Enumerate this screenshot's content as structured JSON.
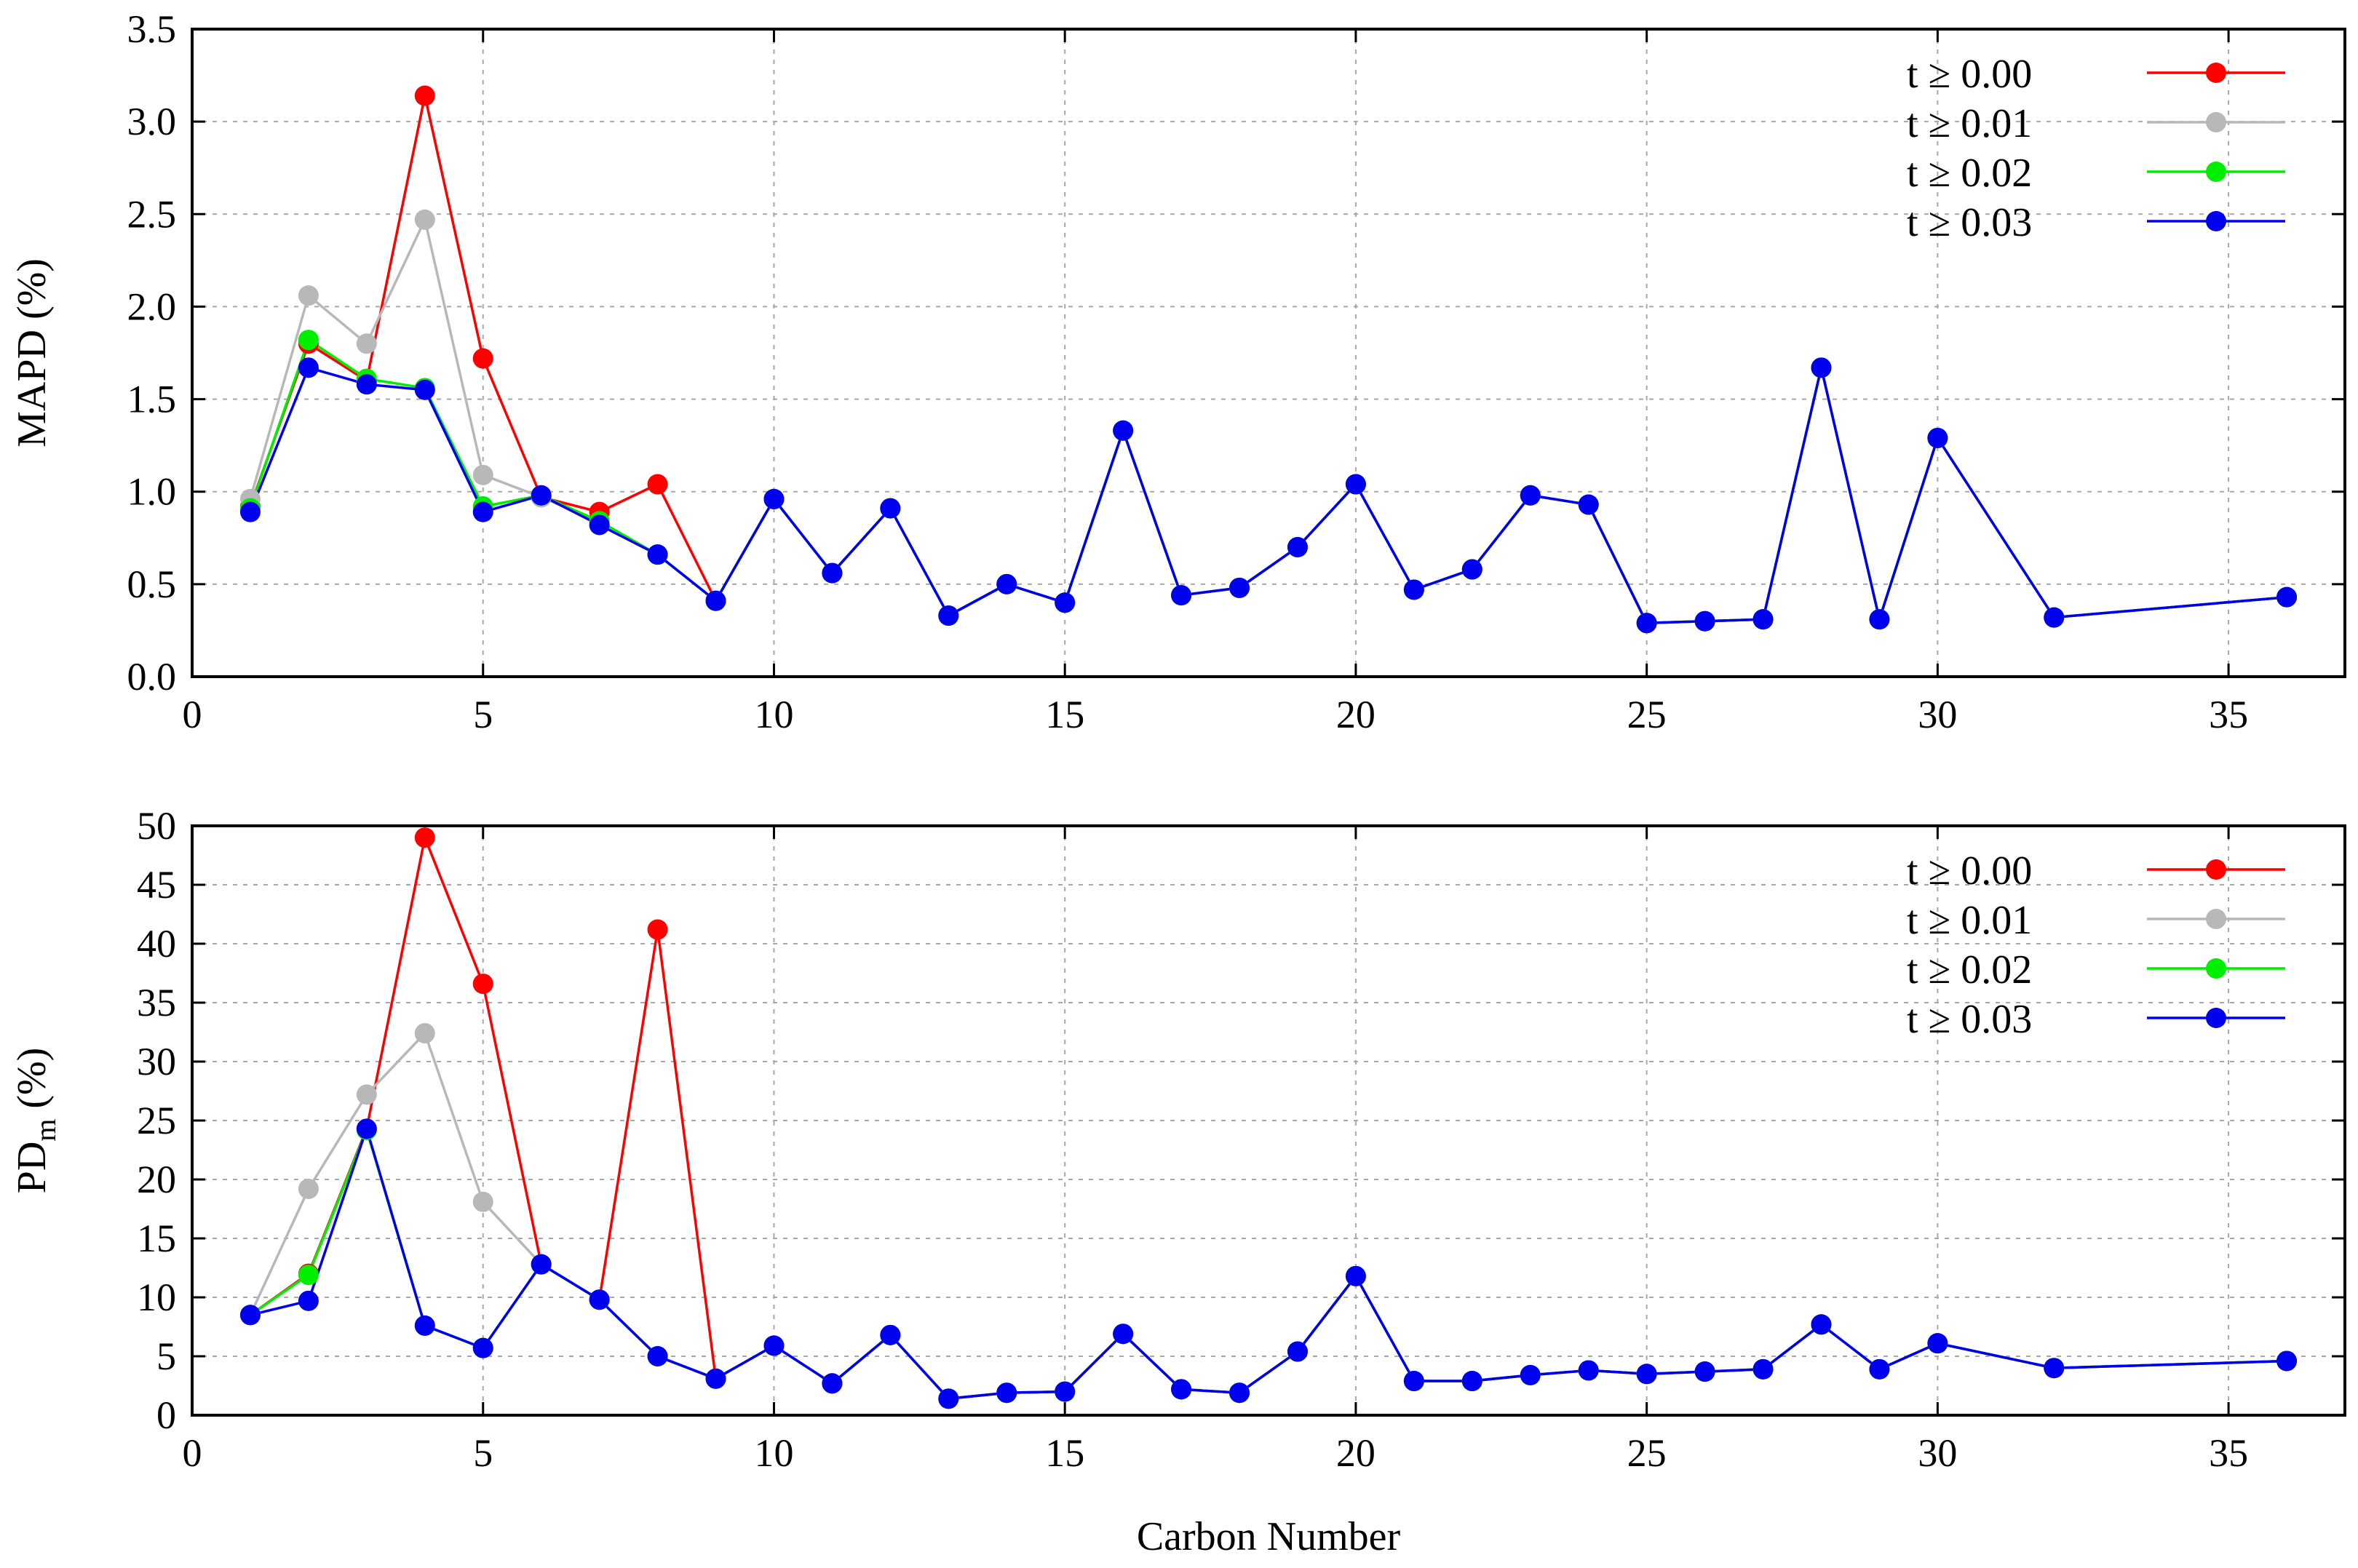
{
  "chart_data": [
    {
      "type": "line",
      "ylabel": "MAPD (%)",
      "xlim": [
        0,
        37
      ],
      "ylim": [
        0,
        3.5
      ],
      "xticks": [
        "0",
        "5",
        "10",
        "15",
        "20",
        "25",
        "30",
        "35"
      ],
      "yticks": [
        "0.0",
        "0.5",
        "1.0",
        "1.5",
        "2.0",
        "2.5",
        "3.0",
        "3.5"
      ],
      "grid": true,
      "legend_position": "top-right",
      "series": [
        {
          "name": "t ≥ 0.00",
          "color": "#ff0000",
          "x": [
            1,
            2,
            3,
            4,
            5,
            6,
            7,
            8,
            9,
            10,
            11,
            12,
            13,
            14,
            15,
            16,
            17,
            18,
            19,
            20,
            21,
            22,
            23,
            24,
            25,
            26,
            27,
            28,
            29,
            30,
            32,
            36
          ],
          "y": [
            0.92,
            1.8,
            1.6,
            3.14,
            1.72,
            0.97,
            0.89,
            1.04,
            0.41,
            0.96,
            0.56,
            0.91,
            0.33,
            0.5,
            0.4,
            1.33,
            0.44,
            0.48,
            0.7,
            1.04,
            0.47,
            0.58,
            0.98,
            0.93,
            0.29,
            0.3,
            0.31,
            1.67,
            0.31,
            1.29,
            0.32,
            0.43
          ]
        },
        {
          "name": "t ≥ 0.01",
          "color": "#b8b8b8",
          "x": [
            1,
            2,
            3,
            4,
            5,
            6,
            7,
            8,
            9,
            10,
            11,
            12,
            13,
            14,
            15,
            16,
            17,
            18,
            19,
            20,
            21,
            22,
            23,
            24,
            25,
            26,
            27,
            28,
            29,
            30,
            32,
            36
          ],
          "y": [
            0.96,
            2.06,
            1.8,
            2.47,
            1.09,
            0.97,
            0.84,
            0.66,
            0.41,
            0.96,
            0.56,
            0.91,
            0.33,
            0.5,
            0.4,
            1.33,
            0.44,
            0.48,
            0.7,
            1.04,
            0.47,
            0.58,
            0.98,
            0.93,
            0.29,
            0.3,
            0.31,
            1.67,
            0.31,
            1.29,
            0.32,
            0.43
          ]
        },
        {
          "name": "t ≥ 0.02",
          "color": "#00ee00",
          "x": [
            1,
            2,
            3,
            4,
            5,
            6,
            7,
            8,
            9,
            10,
            11,
            12,
            13,
            14,
            15,
            16,
            17,
            18,
            19,
            20,
            21,
            22,
            23,
            24,
            25,
            26,
            27,
            28,
            29,
            30,
            32,
            36
          ],
          "y": [
            0.91,
            1.82,
            1.61,
            1.56,
            0.92,
            0.98,
            0.84,
            0.66,
            0.41,
            0.96,
            0.56,
            0.91,
            0.33,
            0.5,
            0.4,
            1.33,
            0.44,
            0.48,
            0.7,
            1.04,
            0.47,
            0.58,
            0.98,
            0.93,
            0.29,
            0.3,
            0.31,
            1.67,
            0.31,
            1.29,
            0.32,
            0.43
          ]
        },
        {
          "name": "t ≥ 0.03",
          "color": "#0000ee",
          "x": [
            1,
            2,
            3,
            4,
            5,
            6,
            7,
            8,
            9,
            10,
            11,
            12,
            13,
            14,
            15,
            16,
            17,
            18,
            19,
            20,
            21,
            22,
            23,
            24,
            25,
            26,
            27,
            28,
            29,
            30,
            32,
            36
          ],
          "y": [
            0.89,
            1.67,
            1.58,
            1.55,
            0.89,
            0.98,
            0.82,
            0.66,
            0.41,
            0.96,
            0.56,
            0.91,
            0.33,
            0.5,
            0.4,
            1.33,
            0.44,
            0.48,
            0.7,
            1.04,
            0.47,
            0.58,
            0.98,
            0.93,
            0.29,
            0.3,
            0.31,
            1.67,
            0.31,
            1.29,
            0.32,
            0.43
          ]
        }
      ]
    },
    {
      "type": "line",
      "ylabel_main": "PD",
      "ylabel_sub": "m",
      "ylabel_suffix": " (%)",
      "xlabel": "Carbon Number",
      "xlim": [
        0,
        37
      ],
      "ylim": [
        0,
        50
      ],
      "xticks": [
        "0",
        "5",
        "10",
        "15",
        "20",
        "25",
        "30",
        "35"
      ],
      "yticks": [
        "0",
        "5",
        "10",
        "15",
        "20",
        "25",
        "30",
        "35",
        "40",
        "45",
        "50"
      ],
      "grid": true,
      "legend_position": "top-right",
      "series": [
        {
          "name": "t ≥ 0.00",
          "color": "#ff0000",
          "x": [
            1,
            2,
            3,
            4,
            5,
            6,
            7,
            8,
            9,
            10,
            11,
            12,
            13,
            14,
            15,
            16,
            17,
            18,
            19,
            20,
            21,
            22,
            23,
            24,
            25,
            26,
            27,
            28,
            29,
            30,
            32,
            36
          ],
          "y": [
            8.5,
            12,
            24.3,
            49,
            36.6,
            12.8,
            9.8,
            41.2,
            3.1,
            5.9,
            2.7,
            6.8,
            1.4,
            1.9,
            2.0,
            6.9,
            2.2,
            1.9,
            5.4,
            11.8,
            2.9,
            2.9,
            3.4,
            3.8,
            3.5,
            3.7,
            3.9,
            7.7,
            3.9,
            6.1,
            4.0,
            4.6
          ]
        },
        {
          "name": "t ≥ 0.01",
          "color": "#b8b8b8",
          "x": [
            1,
            2,
            3,
            4,
            5,
            6,
            7,
            8,
            9,
            10,
            11,
            12,
            13,
            14,
            15,
            16,
            17,
            18,
            19,
            20,
            21,
            22,
            23,
            24,
            25,
            26,
            27,
            28,
            29,
            30,
            32,
            36
          ],
          "y": [
            8.5,
            19.2,
            27.2,
            32.4,
            18.1,
            12.8,
            9.8,
            5.0,
            3.1,
            5.9,
            2.7,
            6.8,
            1.4,
            1.9,
            2.0,
            6.9,
            2.2,
            1.9,
            5.4,
            11.8,
            2.9,
            2.9,
            3.4,
            3.8,
            3.5,
            3.7,
            3.9,
            7.7,
            3.9,
            6.1,
            4.0,
            4.6
          ]
        },
        {
          "name": "t ≥ 0.02",
          "color": "#00ee00",
          "x": [
            1,
            2,
            3,
            4,
            5,
            6,
            7,
            8,
            9,
            10,
            11,
            12,
            13,
            14,
            15,
            16,
            17,
            18,
            19,
            20,
            21,
            22,
            23,
            24,
            25,
            26,
            27,
            28,
            29,
            30,
            32,
            36
          ],
          "y": [
            8.5,
            11.9,
            24.2,
            7.6,
            5.7,
            12.8,
            9.8,
            5.0,
            3.1,
            5.9,
            2.7,
            6.8,
            1.4,
            1.9,
            2.0,
            6.9,
            2.2,
            1.9,
            5.4,
            11.8,
            2.9,
            2.9,
            3.4,
            3.8,
            3.5,
            3.7,
            3.9,
            7.7,
            3.9,
            6.1,
            4.0,
            4.6
          ]
        },
        {
          "name": "t ≥ 0.03",
          "color": "#0000ee",
          "x": [
            1,
            2,
            3,
            4,
            5,
            6,
            7,
            8,
            9,
            10,
            11,
            12,
            13,
            14,
            15,
            16,
            17,
            18,
            19,
            20,
            21,
            22,
            23,
            24,
            25,
            26,
            27,
            28,
            29,
            30,
            32,
            36
          ],
          "y": [
            8.5,
            9.7,
            24.3,
            7.6,
            5.7,
            12.8,
            9.8,
            5.0,
            3.1,
            5.9,
            2.7,
            6.8,
            1.4,
            1.9,
            2.0,
            6.9,
            2.2,
            1.9,
            5.4,
            11.8,
            2.9,
            2.9,
            3.4,
            3.8,
            3.5,
            3.7,
            3.9,
            7.7,
            3.9,
            6.1,
            4.0,
            4.6
          ]
        }
      ]
    }
  ]
}
